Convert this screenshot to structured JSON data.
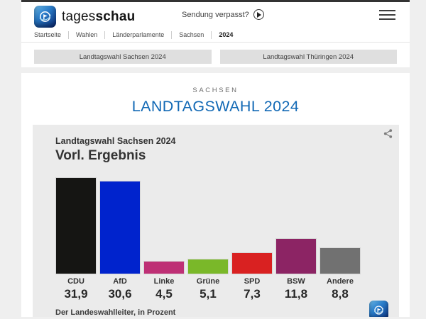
{
  "header": {
    "brand": {
      "word_regular": "tages",
      "word_bold": "schau"
    },
    "sendung_verpasst": "Sendung verpasst?",
    "breadcrumb": [
      {
        "label": "Startseite"
      },
      {
        "label": "Wahlen"
      },
      {
        "label": "Länderparlamente"
      },
      {
        "label": "Sachsen"
      },
      {
        "label": "2024"
      }
    ],
    "tabs": [
      {
        "label": "Landtagswahl Sachsen 2024"
      },
      {
        "label": "Landtagswahl Thüringen 2024"
      }
    ]
  },
  "main": {
    "kicker": "SACHSEN",
    "title": "LANDTAGSWAHL 2024",
    "title_color": "#1269b5"
  },
  "chart_card": {
    "subtitle": "Landtagswahl Sachsen 2024",
    "heading": "Vorl. Ergebnis",
    "source": "Der Landeswahlleiter, in Prozent",
    "background": "#ebebeb"
  },
  "chart_data": {
    "type": "bar",
    "title": "Vorl. Ergebnis",
    "subtitle": "Landtagswahl Sachsen 2024",
    "categories": [
      "CDU",
      "AfD",
      "Linke",
      "Grüne",
      "SPD",
      "BSW",
      "Andere"
    ],
    "values": [
      31.9,
      30.6,
      4.5,
      5.1,
      7.3,
      11.8,
      8.8
    ],
    "value_labels": [
      "31,9",
      "30,6",
      "4,5",
      "5,1",
      "7,3",
      "11,8",
      "8,8"
    ],
    "colors": [
      "#151513",
      "#0023cd",
      "#be3075",
      "#7ab829",
      "#d92121",
      "#8c2464",
      "#717171"
    ],
    "unit": "Prozent",
    "source": "Der Landeswahlleiter",
    "ylim": [
      0,
      33
    ],
    "grid": false,
    "legend": false
  },
  "icons": {
    "brand_logo": "tagesschau-globe-icon",
    "play": "play-icon",
    "menu": "hamburger-menu-icon",
    "share": "share-icon"
  }
}
